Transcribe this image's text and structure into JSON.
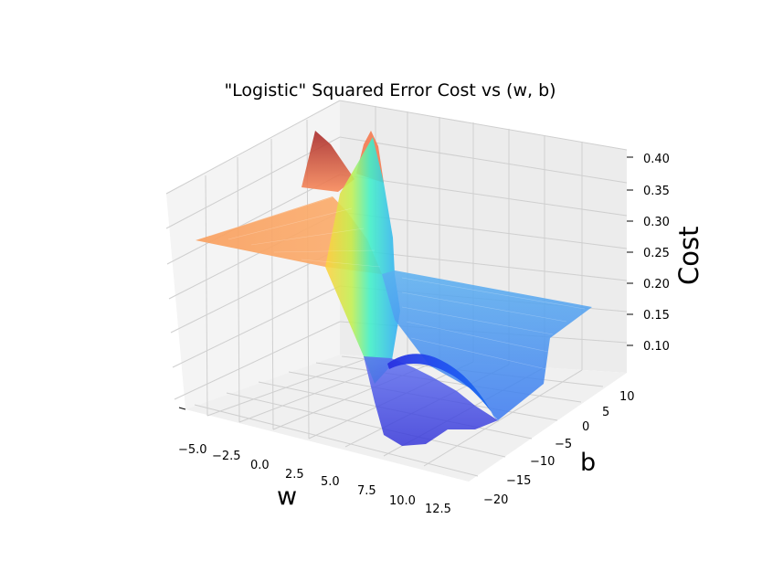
{
  "chart_data": {
    "type": "surface",
    "title": "\"Logistic\" Squared Error Cost vs (w, b)",
    "xlabel": "w",
    "ylabel": "b",
    "zlabel": "Cost",
    "x_ticks": [
      "−5.0",
      "−2.5",
      "0.0",
      "2.5",
      "5.0",
      "7.5",
      "10.0",
      "12.5"
    ],
    "y_ticks": [
      "−20",
      "−15",
      "−10",
      "−5",
      "0",
      "5",
      "10"
    ],
    "z_ticks": [
      "0.10",
      "0.15",
      "0.20",
      "0.25",
      "0.30",
      "0.35",
      "0.40"
    ],
    "xlim": [
      -6,
      12.5
    ],
    "ylim": [
      -20,
      10
    ],
    "zlim": [
      0.08,
      0.41
    ],
    "colormap": "jet",
    "grid": true,
    "surface_samples": {
      "description_of_levels": "cost at sampled (w, b) points",
      "points": [
        {
          "w": -6,
          "b": 10,
          "cost": 0.25
        },
        {
          "w": -6,
          "b": -20,
          "cost": 0.25
        },
        {
          "w": 0,
          "b": 5,
          "cost": 0.25
        },
        {
          "w": 0.3,
          "b": 4,
          "cost": 0.4
        },
        {
          "w": 0.8,
          "b": 4,
          "cost": 0.4
        },
        {
          "w": 2,
          "b": 0,
          "cost": 0.18
        },
        {
          "w": 3,
          "b": -5,
          "cost": 0.1
        },
        {
          "w": 4,
          "b": -10,
          "cost": 0.09
        },
        {
          "w": 8,
          "b": 2,
          "cost": 0.19
        },
        {
          "w": 12.5,
          "b": 10,
          "cost": 0.19
        },
        {
          "w": 12.5,
          "b": -20,
          "cost": 0.19
        }
      ]
    }
  }
}
